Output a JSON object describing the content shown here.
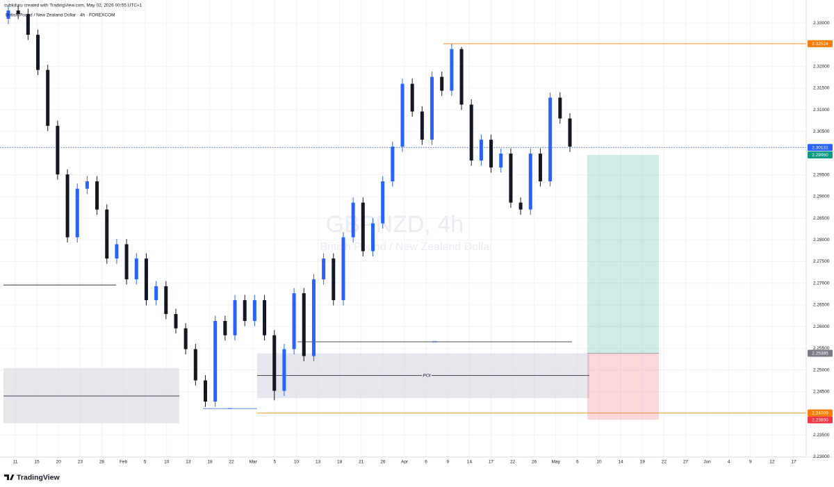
{
  "header": {
    "author_line": "cubkduru created with TradingView.com, May 02, 2026 00:55 UTC+1",
    "symbol_line": "British Pound / New Zealand Dollar · 4h · FOREXCOM"
  },
  "watermark": {
    "symbol": "GBPNZD, 4h",
    "description": "British Pound / New Zealand Dollar"
  },
  "logo": "TradingView",
  "chart_data": {
    "type": "candlestick",
    "up_color": "#2962ff",
    "down_color": "#131722",
    "open": [
      2.331,
      2.3329,
      2.3321,
      2.3273,
      2.3192,
      2.3063,
      2.2951,
      2.2806,
      2.2918,
      2.2935,
      2.287,
      2.2757,
      2.279,
      2.2709,
      2.2757,
      2.2661,
      2.2693,
      2.2629,
      2.2596,
      2.2548,
      2.2476,
      2.2427,
      2.2613,
      2.258,
      2.2661,
      2.2613,
      2.2661,
      2.258,
      2.2452,
      2.2548,
      2.2677,
      2.2532,
      2.2709,
      2.2757,
      2.2661,
      2.2806,
      2.2886,
      2.2774,
      2.2838,
      2.2935,
      2.3015,
      2.316,
      2.3096,
      2.3031,
      2.3176,
      2.3144,
      2.324,
      2.3112,
      2.2983,
      2.3031,
      2.2967,
      2.2999,
      2.2886,
      2.287,
      2.2999,
      2.2935,
      2.3128,
      2.308
    ],
    "high": [
      2.3341,
      2.3341,
      2.3333,
      2.3285,
      2.3204,
      2.3075,
      2.2963,
      2.293,
      2.2947,
      2.2947,
      2.2882,
      2.2802,
      2.2802,
      2.2769,
      2.2769,
      2.2705,
      2.2705,
      2.2641,
      2.2608,
      2.256,
      2.2488,
      2.2625,
      2.2625,
      2.2673,
      2.2673,
      2.2673,
      2.2673,
      2.2592,
      2.256,
      2.2689,
      2.2689,
      2.2721,
      2.2769,
      2.2769,
      2.2818,
      2.2898,
      2.2898,
      2.285,
      2.2947,
      2.3027,
      2.3172,
      2.3172,
      2.3108,
      2.3188,
      2.3188,
      2.3252,
      2.3245,
      2.3124,
      2.3043,
      2.3043,
      2.3011,
      2.3011,
      2.2898,
      2.3011,
      2.3011,
      2.314,
      2.314,
      2.3092
    ],
    "low": [
      2.3298,
      2.3309,
      2.3261,
      2.318,
      2.3051,
      2.2939,
      2.2794,
      2.2794,
      2.2906,
      2.2858,
      2.2745,
      2.2745,
      2.2697,
      2.2697,
      2.2649,
      2.2649,
      2.2617,
      2.2584,
      2.2536,
      2.2464,
      2.2415,
      2.2415,
      2.2568,
      2.2568,
      2.2601,
      2.2601,
      2.2568,
      2.243,
      2.244,
      2.2536,
      2.252,
      2.252,
      2.2697,
      2.2649,
      2.2649,
      2.2794,
      2.2762,
      2.2762,
      2.2826,
      2.2923,
      2.3003,
      2.3084,
      2.3019,
      2.3019,
      2.3132,
      2.3132,
      2.31,
      2.2971,
      2.2971,
      2.2955,
      2.2955,
      2.2874,
      2.2858,
      2.2858,
      2.2923,
      2.2923,
      2.3068,
      2.3003
    ],
    "close": [
      2.3329,
      2.3321,
      2.3273,
      2.3192,
      2.3063,
      2.2951,
      2.2806,
      2.2918,
      2.2935,
      2.287,
      2.2757,
      2.279,
      2.2709,
      2.2757,
      2.2661,
      2.2693,
      2.2629,
      2.2596,
      2.2548,
      2.2476,
      2.2427,
      2.2613,
      2.258,
      2.2661,
      2.2613,
      2.2661,
      2.258,
      2.2452,
      2.2548,
      2.2677,
      2.2532,
      2.2709,
      2.2757,
      2.2661,
      2.2806,
      2.2886,
      2.2774,
      2.2838,
      2.2935,
      2.3015,
      2.316,
      2.3096,
      2.3031,
      2.3176,
      2.3144,
      2.324,
      2.3112,
      2.2983,
      2.3031,
      2.2967,
      2.2999,
      2.2886,
      2.287,
      2.2999,
      2.2935,
      2.3128,
      2.308,
      2.3015
    ],
    "ylim": [
      2.2299,
      2.3334
    ],
    "yticks": [
      {
        "value": 2.33,
        "label": "2.33000"
      },
      {
        "value": 2.32,
        "label": "2.32000"
      },
      {
        "value": 2.315,
        "label": "2.31500"
      },
      {
        "value": 2.31,
        "label": "2.31000"
      },
      {
        "value": 2.305,
        "label": "2.30500"
      },
      {
        "value": 2.295,
        "label": "2.29500"
      },
      {
        "value": 2.29,
        "label": "2.29000"
      },
      {
        "value": 2.285,
        "label": "2.28500"
      },
      {
        "value": 2.28,
        "label": "2.28000"
      },
      {
        "value": 2.275,
        "label": "2.27500"
      },
      {
        "value": 2.27,
        "label": "2.27000"
      },
      {
        "value": 2.265,
        "label": "2.26500"
      },
      {
        "value": 2.26,
        "label": "2.26000"
      },
      {
        "value": 2.255,
        "label": "2.25500"
      },
      {
        "value": 2.25,
        "label": "2.25000"
      },
      {
        "value": 2.245,
        "label": "2.24500"
      },
      {
        "value": 2.235,
        "label": "2.23500"
      },
      {
        "value": 2.23,
        "label": "2.23000"
      }
    ],
    "grid": true,
    "x_labels": [
      "11",
      "15",
      "20",
      "23",
      "28",
      "Feb",
      "5",
      "10",
      "13",
      "18",
      "22",
      "Mar",
      "5",
      "10",
      "13",
      "18",
      "21",
      "26",
      "Apr",
      "6",
      "9",
      "14",
      "17",
      "22",
      "26",
      "May",
      "6",
      "10",
      "14",
      "19",
      "22",
      "27",
      "Jun",
      "4",
      "9",
      "12",
      "17"
    ],
    "horizontal_lines": [
      {
        "value": 2.32524,
        "color": "#f57c00",
        "dashed": false
      },
      {
        "value": 2.30131,
        "color": "#2962ff",
        "dashed": true
      },
      {
        "value": 2.24009,
        "color": "#f57c00",
        "dashed": false
      },
      {
        "value": 2.2696,
        "color": "#131722",
        "dashed": false
      }
    ],
    "zones": [
      {
        "top": 2.2504,
        "bottom": 2.2377,
        "mid": 2.244
      },
      {
        "top": 2.25385,
        "bottom": 2.2435,
        "mid": 2.2487,
        "label": "POI"
      }
    ],
    "zone_color": "#d1d4dc",
    "liquidity_lines": [
      {
        "value": 2.2565,
        "label": "SSL"
      },
      {
        "value": 2.2411,
        "label": "xxx"
      }
    ],
    "position": {
      "entry": 2.25385,
      "target": 2.2996,
      "stop": 2.2385,
      "target_color": "#089981",
      "stop_color": "#f23645"
    },
    "price_tags": [
      {
        "value": 2.32524,
        "color": "#f57c00"
      },
      {
        "value": 2.30131,
        "color": "#2962ff"
      },
      {
        "value": {
          "value": 2.2996,
          "label": "2.29960"
        },
        "color": "#089981"
      },
      {
        "value": 2.25385,
        "color": "#787b86"
      },
      {
        "value": 2.24009,
        "color": "#f57c00"
      },
      {
        "value": {
          "value": 2.2385,
          "label": "2.23850"
        },
        "color": "#f23645"
      }
    ]
  }
}
